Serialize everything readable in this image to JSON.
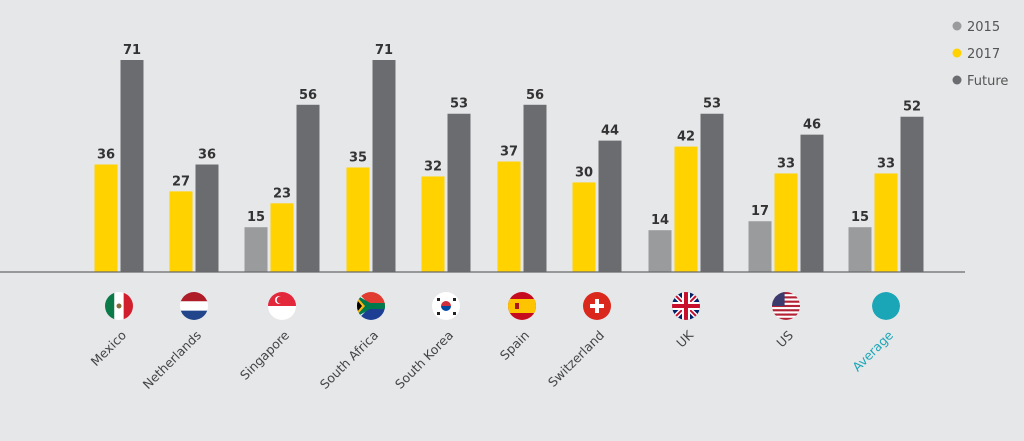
{
  "chart_data": {
    "type": "bar",
    "categories": [
      "Mexico",
      "Netherlands",
      "Singapore",
      "South Africa",
      "South Korea",
      "Spain",
      "Switzerland",
      "UK",
      "US",
      "Average"
    ],
    "series": [
      {
        "name": "2015",
        "color": "#9a9b9d",
        "values": [
          null,
          null,
          15,
          null,
          null,
          null,
          null,
          14,
          17,
          15
        ]
      },
      {
        "name": "2017",
        "color": "#ffd200",
        "values": [
          36,
          27,
          23,
          35,
          32,
          37,
          30,
          42,
          33,
          33
        ]
      },
      {
        "name": "Future",
        "color": "#6b6c6f",
        "values": [
          71,
          36,
          56,
          71,
          53,
          56,
          44,
          53,
          46,
          52
        ]
      }
    ],
    "ylim": [
      0,
      75
    ],
    "grid": false,
    "legend": "top-right",
    "category_icons": [
      "flag-mexico",
      "flag-netherlands",
      "flag-singapore",
      "flag-south-africa",
      "flag-south-korea",
      "flag-spain",
      "flag-switzerland",
      "flag-uk",
      "flag-us",
      "teal-circle"
    ],
    "highlight_category": "Average",
    "highlight_color": "#1aa6b7"
  }
}
